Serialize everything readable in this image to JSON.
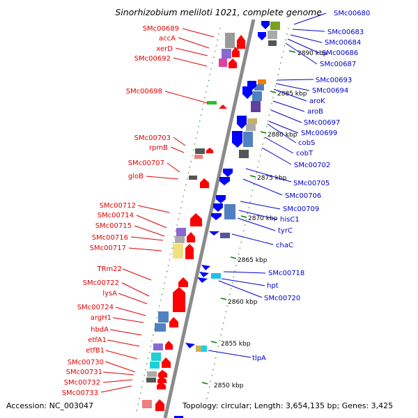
{
  "title": "Sinorhizobium meliloti 1021, complete genome",
  "footer": {
    "accession": "Accession: NC_003047",
    "summary": "Topology: circular; Length: 3,654,135 bp; Genes: 3,425"
  },
  "ticks": [
    "2890 kbp",
    "2885 kbp",
    "2880 kbp",
    "2875 kbp",
    "2870 kbp",
    "2865 kbp",
    "2860 kbp",
    "2855 kbp",
    "2850 kbp"
  ],
  "left_genes": [
    "SMc00689",
    "accA",
    "xerD",
    "SMc00692",
    "SMc00698",
    "SMc00703",
    "rpmB",
    "SMc00707",
    "gloB",
    "SMc00712",
    "SMc00714",
    "SMc00715",
    "SMc00716",
    "SMc00717",
    "TRm22",
    "SMc00722",
    "lysA",
    "SMc00724",
    "argH1",
    "hbdA",
    "etfA1",
    "etfB1",
    "SMc00730",
    "SMc00731",
    "SMc00732",
    "SMc00733"
  ],
  "right_genes": [
    "SMc00680",
    "SMc00683",
    "SMc00684",
    "SMc00686",
    "SMc00687",
    "SMc00693",
    "SMc00694",
    "aroK",
    "aroB",
    "SMc00697",
    "SMc00699",
    "cobS",
    "cobT",
    "SMc00702",
    "SMc00705",
    "SMc00706",
    "SMc00709",
    "hisC1",
    "tyrC",
    "chaC",
    "SMc00718",
    "hpt",
    "SMc00720",
    "tlpA"
  ],
  "colors": {
    "forward": "#ff0000",
    "reverse": "#0000ff",
    "backbone": "#808080",
    "tick": "#008000",
    "left_label": "#e00000",
    "right_label": "#0000cc"
  }
}
